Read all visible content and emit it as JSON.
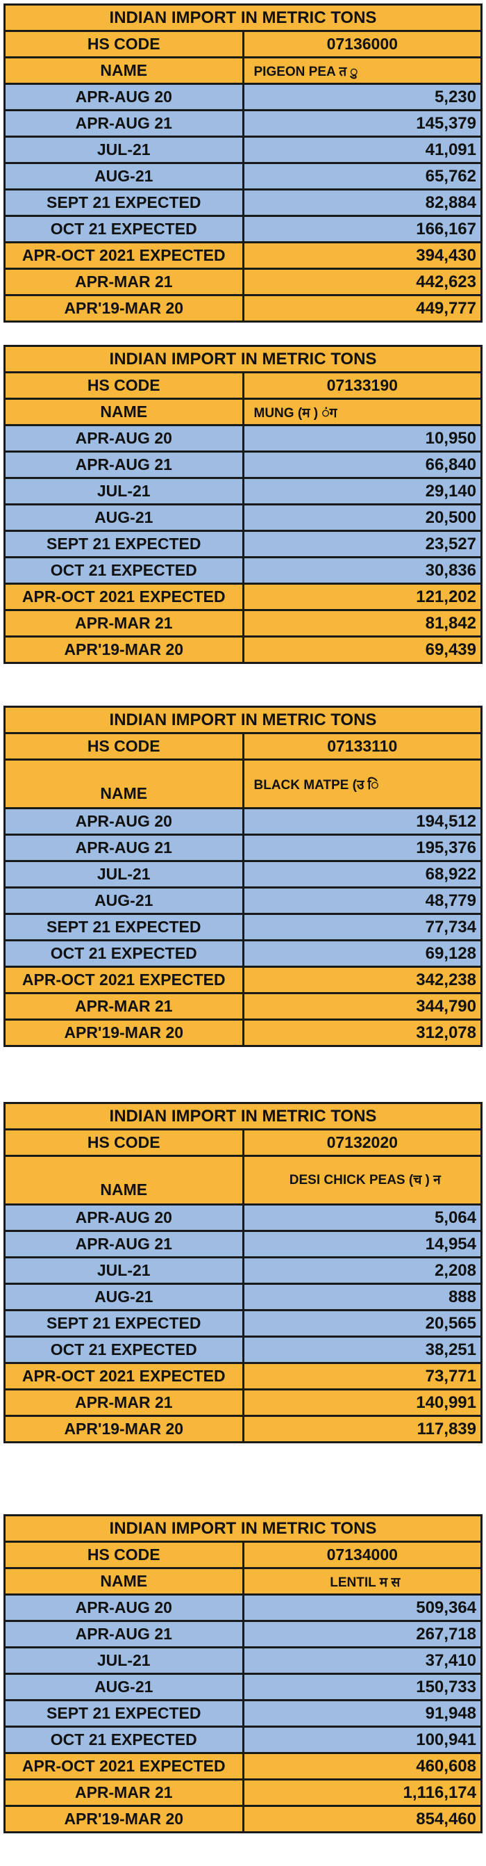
{
  "tables": [
    {
      "title": "INDIAN IMPORT IN METRIC TONS",
      "hs_label": "HS CODE",
      "hs_code": "07136000",
      "name_label": "NAME",
      "name_value": "PIGEON PEA त ु",
      "rows": [
        {
          "label": "APR-AUG 20",
          "value": "5,230"
        },
        {
          "label": "APR-AUG 21",
          "value": "145,379"
        },
        {
          "label": "JUL-21",
          "value": "41,091"
        },
        {
          "label": "AUG-21",
          "value": "65,762"
        },
        {
          "label": "SEPT 21 EXPECTED",
          "value": "82,884"
        },
        {
          "label": "OCT 21 EXPECTED",
          "value": "166,167"
        },
        {
          "label": "APR-OCT 2021 EXPECTED",
          "value": "394,430"
        },
        {
          "label": "APR-MAR 21",
          "value": "442,623"
        },
        {
          "label": "APR'19-MAR 20",
          "value": "449,777"
        }
      ]
    },
    {
      "title": "INDIAN IMPORT IN METRIC TONS",
      "hs_label": "HS CODE",
      "hs_code": "07133190",
      "name_label": "NAME",
      "name_value": "MUNG (म ) ंग",
      "rows": [
        {
          "label": "APR-AUG 20",
          "value": "10,950"
        },
        {
          "label": "APR-AUG 21",
          "value": "66,840"
        },
        {
          "label": "JUL-21",
          "value": "29,140"
        },
        {
          "label": "AUG-21",
          "value": "20,500"
        },
        {
          "label": "SEPT 21 EXPECTED",
          "value": "23,527"
        },
        {
          "label": "OCT 21 EXPECTED",
          "value": "30,836"
        },
        {
          "label": "APR-OCT 2021 EXPECTED",
          "value": "121,202"
        },
        {
          "label": "APR-MAR 21",
          "value": "81,842"
        },
        {
          "label": "APR'19-MAR 20",
          "value": "69,439"
        }
      ]
    },
    {
      "title": "INDIAN IMPORT IN METRIC TONS",
      "hs_label": "HS CODE",
      "hs_code": "07133110",
      "name_label": "NAME",
      "name_value": "BLACK MATPE (उ ि",
      "rows": [
        {
          "label": "APR-AUG 20",
          "value": "194,512"
        },
        {
          "label": "APR-AUG 21",
          "value": "195,376"
        },
        {
          "label": "JUL-21",
          "value": "68,922"
        },
        {
          "label": "AUG-21",
          "value": "48,779"
        },
        {
          "label": "SEPT 21 EXPECTED",
          "value": "77,734"
        },
        {
          "label": "OCT 21 EXPECTED",
          "value": "69,128"
        },
        {
          "label": "APR-OCT 2021 EXPECTED",
          "value": "342,238"
        },
        {
          "label": "APR-MAR 21",
          "value": "344,790"
        },
        {
          "label": "APR'19-MAR 20",
          "value": "312,078"
        }
      ]
    },
    {
      "title": "INDIAN IMPORT IN METRIC TONS",
      "hs_label": "HS CODE",
      "hs_code": "07132020",
      "name_label": "NAME",
      "name_value": "DESI CHICK PEAS (च ) न",
      "rows": [
        {
          "label": "APR-AUG 20",
          "value": "5,064"
        },
        {
          "label": "APR-AUG 21",
          "value": "14,954"
        },
        {
          "label": "JUL-21",
          "value": "2,208"
        },
        {
          "label": "AUG-21",
          "value": "888"
        },
        {
          "label": "SEPT 21 EXPECTED",
          "value": "20,565"
        },
        {
          "label": "OCT 21 EXPECTED",
          "value": "38,251"
        },
        {
          "label": "APR-OCT 2021 EXPECTED",
          "value": "73,771"
        },
        {
          "label": "APR-MAR 21",
          "value": "140,991"
        },
        {
          "label": "APR'19-MAR 20",
          "value": "117,839"
        }
      ]
    },
    {
      "title": "INDIAN IMPORT IN METRIC TONS",
      "hs_label": "HS CODE",
      "hs_code": "07134000",
      "name_label": "NAME",
      "name_value": "LENTIL म स",
      "rows": [
        {
          "label": "APR-AUG 20",
          "value": "509,364"
        },
        {
          "label": "APR-AUG 21",
          "value": "267,718"
        },
        {
          "label": "JUL-21",
          "value": "37,410"
        },
        {
          "label": "AUG-21",
          "value": "150,733"
        },
        {
          "label": "SEPT 21 EXPECTED",
          "value": "91,948"
        },
        {
          "label": "OCT 21 EXPECTED",
          "value": "100,941"
        },
        {
          "label": "APR-OCT 2021 EXPECTED",
          "value": "460,608"
        },
        {
          "label": "APR-MAR 21",
          "value": "1,116,174"
        },
        {
          "label": "APR'19-MAR 20",
          "value": "854,460"
        }
      ]
    }
  ]
}
